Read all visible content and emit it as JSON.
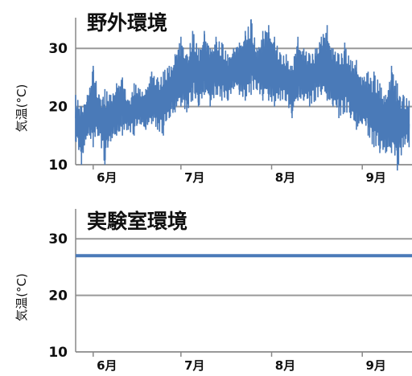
{
  "colors": {
    "series": "#4a7ab8",
    "grid": "#999999",
    "axis": "#888888"
  },
  "chart_data": [
    {
      "type": "line",
      "title": "野外環境",
      "ylabel": "気温(°C)",
      "xlabel": "",
      "ylim": [
        10,
        35
      ],
      "yticks": [
        10,
        20,
        30
      ],
      "xlim": [
        "2012-05-26",
        "2012-09-18"
      ],
      "xticks": [
        {
          "date": "2012-06-01",
          "label": "6月"
        },
        {
          "date": "2012-07-01",
          "label": "7月"
        },
        {
          "date": "2012-08-01",
          "label": "8月"
        },
        {
          "date": "2012-09-01",
          "label": "9月"
        }
      ],
      "grid": true,
      "legend": "none",
      "series": [
        {
          "x": [
            "2012-05-26",
            "2012-05-28",
            "2012-05-30",
            "2012-06-01",
            "2012-06-03",
            "2012-06-05",
            "2012-06-07",
            "2012-06-09",
            "2012-06-11",
            "2012-06-13",
            "2012-06-15",
            "2012-06-17",
            "2012-06-19",
            "2012-06-21",
            "2012-06-23",
            "2012-06-25",
            "2012-06-27",
            "2012-06-29",
            "2012-07-01",
            "2012-07-03",
            "2012-07-05",
            "2012-07-07",
            "2012-07-09",
            "2012-07-11",
            "2012-07-13",
            "2012-07-15",
            "2012-07-17",
            "2012-07-19",
            "2012-07-21",
            "2012-07-23",
            "2012-07-25",
            "2012-07-27",
            "2012-07-29",
            "2012-07-31",
            "2012-08-02",
            "2012-08-04",
            "2012-08-06",
            "2012-08-08",
            "2012-08-10",
            "2012-08-12",
            "2012-08-14",
            "2012-08-16",
            "2012-08-18",
            "2012-08-20",
            "2012-08-22",
            "2012-08-24",
            "2012-08-26",
            "2012-08-28",
            "2012-08-30",
            "2012-09-01",
            "2012-09-03",
            "2012-09-05",
            "2012-09-07",
            "2012-09-09",
            "2012-09-11",
            "2012-09-13",
            "2012-09-15",
            "2012-09-17"
          ],
          "min": [
            14,
            10,
            15,
            13,
            15,
            10,
            14,
            15,
            15,
            16,
            15,
            17,
            16,
            17,
            16,
            15,
            18,
            19,
            20,
            19,
            21,
            20,
            22,
            20,
            22,
            21,
            21,
            23,
            22,
            21,
            22,
            23,
            21,
            21,
            20,
            21,
            21,
            18,
            21,
            21,
            20,
            21,
            22,
            21,
            20,
            18,
            19,
            18,
            16,
            17,
            15,
            13,
            12,
            12,
            12,
            9,
            13,
            13
          ],
          "max": [
            22,
            20,
            22,
            27,
            22,
            23,
            22,
            24,
            25,
            21,
            24,
            23,
            23,
            26,
            25,
            26,
            27,
            29,
            32,
            29,
            33,
            30,
            33,
            30,
            32,
            31,
            29,
            30,
            31,
            33,
            35,
            30,
            33,
            34,
            32,
            29,
            29,
            27,
            32,
            30,
            29,
            30,
            32,
            34,
            30,
            29,
            31,
            28,
            28,
            25,
            26,
            26,
            24,
            22,
            27,
            24,
            22,
            21
          ]
        }
      ]
    },
    {
      "type": "line",
      "title": "実験室環境",
      "ylabel": "気温(°C)",
      "xlabel": "",
      "ylim": [
        10,
        35
      ],
      "yticks": [
        10,
        20,
        30
      ],
      "xlim": [
        "2012-05-26",
        "2012-09-18"
      ],
      "xticks": [
        {
          "date": "2012-06-01",
          "label": "6月"
        },
        {
          "date": "2012-07-01",
          "label": "7月"
        },
        {
          "date": "2012-08-01",
          "label": "8月"
        },
        {
          "date": "2012-09-01",
          "label": "9月"
        }
      ],
      "grid": true,
      "legend": "none",
      "series": [
        {
          "x": [
            "2012-05-26",
            "2012-09-18"
          ],
          "y": [
            27,
            27
          ]
        }
      ]
    }
  ]
}
